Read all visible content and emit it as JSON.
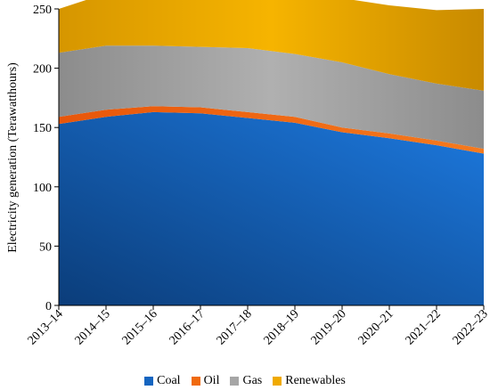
{
  "chart_data": {
    "type": "area",
    "stacked": true,
    "categories": [
      "2013–14",
      "2014–15",
      "2015–16",
      "2016–17",
      "2017–18",
      "2018–19",
      "2019–20",
      "2020–21",
      "2021–22",
      "2022–23"
    ],
    "series": [
      {
        "name": "Coal",
        "values": [
          153,
          159,
          163,
          162,
          158,
          154,
          146,
          141,
          135,
          128
        ],
        "color": "#1565c0"
      },
      {
        "name": "Oil",
        "values": [
          6,
          6,
          5,
          5,
          5,
          5,
          4,
          4,
          4,
          4
        ],
        "color": "#f06a0e"
      },
      {
        "name": "Gas",
        "values": [
          54,
          54,
          51,
          51,
          54,
          53,
          55,
          50,
          48,
          49
        ],
        "color": "#a6a6a6"
      },
      {
        "name": "Renewables",
        "values": [
          37,
          44,
          46,
          49,
          51,
          54,
          54,
          58,
          62,
          69
        ],
        "color": "#f0aa00"
      }
    ],
    "xlabel": "",
    "ylabel": "Electricity generation (Terawatthours)",
    "ylim": [
      0,
      250
    ],
    "yticks": [
      0,
      50,
      100,
      150,
      200,
      250
    ],
    "grid": false,
    "legend_position": "bottom"
  }
}
